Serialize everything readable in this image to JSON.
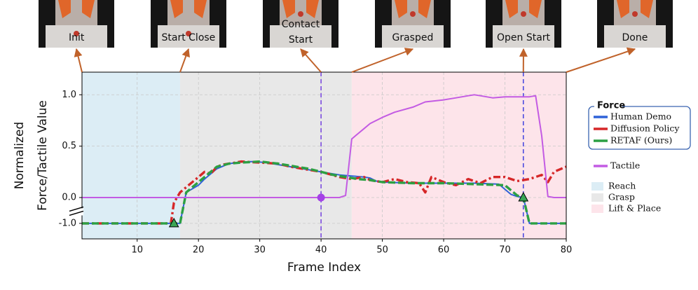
{
  "chart_data": {
    "type": "line",
    "xlabel": "Frame Index",
    "ylabel": [
      "Normalized",
      "Force/Tactile Value"
    ],
    "xlim": [
      1,
      80
    ],
    "ylim": [
      -1.6,
      1.22
    ],
    "axis_break": true,
    "grid": true,
    "xticks": [
      10,
      20,
      30,
      40,
      50,
      60,
      70,
      80
    ],
    "yticks": [
      {
        "value": -1,
        "label": "-1.0"
      },
      {
        "value": 0,
        "label": "0.0"
      },
      {
        "value": 0.5,
        "label": "0.5"
      },
      {
        "value": 1,
        "label": "1.0"
      }
    ],
    "legend_title": "Force",
    "regions": [
      {
        "name": "Reach",
        "start": 1,
        "end": 17,
        "color": "#dcedf5"
      },
      {
        "name": "Grasp",
        "start": 17,
        "end": 45,
        "color": "#e8e8e8"
      },
      {
        "name": "Lift & Place",
        "start": 45,
        "end": 80,
        "color": "#fde4ea"
      }
    ],
    "series": [
      {
        "name": "Human Demo",
        "color": "#2f62d8",
        "dash": "solid",
        "boxed": true,
        "x": [
          1,
          17,
          18,
          20,
          21,
          23,
          25,
          27,
          29,
          31,
          33,
          35,
          37,
          39,
          41,
          43,
          45,
          47,
          48,
          49,
          50,
          55,
          60,
          65,
          69,
          70,
          71,
          72,
          73,
          74,
          80
        ],
        "values": [
          -1,
          -1,
          0.05,
          0.12,
          0.18,
          0.28,
          0.33,
          0.345,
          0.35,
          0.34,
          0.32,
          0.3,
          0.28,
          0.26,
          0.24,
          0.22,
          0.21,
          0.2,
          0.19,
          0.16,
          0.15,
          0.14,
          0.14,
          0.14,
          0.13,
          0.08,
          0.03,
          0.01,
          0,
          -1,
          -1
        ]
      },
      {
        "name": "Diffusion Policy",
        "color": "#d62728",
        "dash": "dashdot",
        "boxed": true,
        "x": [
          1,
          15.5,
          16,
          17,
          18,
          19,
          20,
          21,
          22,
          23,
          24,
          25,
          27,
          30,
          33,
          35,
          37,
          40,
          43,
          45,
          47,
          48,
          50,
          52,
          54,
          56,
          57,
          58,
          60,
          62,
          64,
          66,
          68,
          70,
          72,
          74,
          76,
          77,
          78,
          80
        ],
        "values": [
          -1,
          -1,
          -0.2,
          0.05,
          0.1,
          0.15,
          0.2,
          0.25,
          0.23,
          0.3,
          0.32,
          0.33,
          0.35,
          0.34,
          0.33,
          0.3,
          0.28,
          0.25,
          0.2,
          0.18,
          0.2,
          0.17,
          0.15,
          0.18,
          0.15,
          0.14,
          0.05,
          0.2,
          0.15,
          0.12,
          0.18,
          0.14,
          0.2,
          0.2,
          0.16,
          0.18,
          0.22,
          0.15,
          0.25,
          0.3
        ]
      },
      {
        "name": "RETAF (Ours)",
        "color": "#2ca043",
        "dash": "dashed",
        "boxed": true,
        "x": [
          1,
          17,
          18,
          19,
          20,
          21,
          23,
          25,
          27,
          30,
          33,
          36,
          38,
          40,
          42,
          44,
          46,
          48,
          50,
          55,
          60,
          65,
          70,
          72,
          73,
          74,
          80
        ],
        "values": [
          -1,
          -1,
          0.05,
          0.1,
          0.15,
          0.2,
          0.3,
          0.33,
          0.34,
          0.35,
          0.33,
          0.3,
          0.28,
          0.25,
          0.22,
          0.2,
          0.18,
          0.17,
          0.15,
          0.14,
          0.14,
          0.13,
          0.12,
          0.02,
          0,
          -1,
          -1
        ]
      },
      {
        "name": "Tactile",
        "color": "#c35be3",
        "dash": "solid",
        "boxed": false,
        "x": [
          1,
          43,
          44,
          45,
          46,
          47,
          48,
          49,
          50,
          52,
          55,
          57,
          60,
          62,
          64,
          65,
          66,
          68,
          70,
          74,
          75,
          76,
          77,
          78,
          80
        ],
        "values": [
          0,
          0,
          0.02,
          0.57,
          0.62,
          0.67,
          0.72,
          0.75,
          0.78,
          0.83,
          0.88,
          0.93,
          0.95,
          0.97,
          0.99,
          1.0,
          0.99,
          0.97,
          0.98,
          0.98,
          0.99,
          0.6,
          0.01,
          0,
          0
        ]
      }
    ],
    "vlines": [
      {
        "x": 40,
        "color": "#7b4be0"
      },
      {
        "x": 73,
        "color": "#4b4be0"
      }
    ],
    "markers": [
      {
        "x": 16,
        "y": -1,
        "shape": "triangle",
        "color": "#3aa655"
      },
      {
        "x": 73,
        "y": 0,
        "shape": "triangle",
        "color": "#3aa655"
      },
      {
        "x": 40,
        "y": 0,
        "shape": "circle",
        "color": "#a441e6"
      }
    ],
    "thumbnails": [
      {
        "label": "Init",
        "frame": 1
      },
      {
        "label": "Start Close",
        "frame": 17
      },
      {
        "label": "Contact Start",
        "frame": 40
      },
      {
        "label": "Grasped",
        "frame": 45
      },
      {
        "label": "Open Start",
        "frame": 73
      },
      {
        "label": "Done",
        "frame": 80
      }
    ]
  }
}
